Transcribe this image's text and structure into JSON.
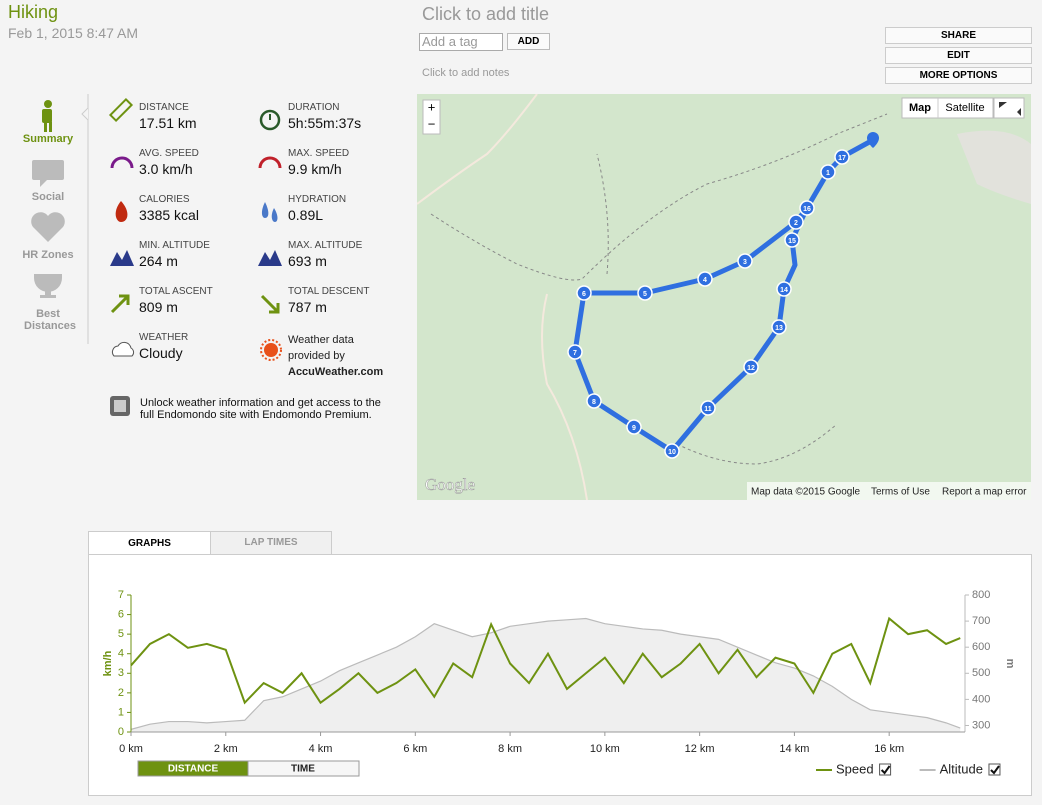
{
  "header": {
    "title": "Hiking",
    "date": "Feb 1, 2015 8:47 AM",
    "title_placeholder": "Click to add title",
    "tag_placeholder": "Add a tag",
    "add_button": "ADD",
    "notes_placeholder": "Click to add notes"
  },
  "actions": [
    "SHARE",
    "EDIT",
    "MORE OPTIONS"
  ],
  "nav": [
    "Summary",
    "Social",
    "HR Zones",
    "Best Distances"
  ],
  "stats": [
    {
      "label": "DISTANCE",
      "value": "17.51 km"
    },
    {
      "label": "DURATION",
      "value": "5h:55m:37s"
    },
    {
      "label": "AVG. SPEED",
      "value": "3.0 km/h"
    },
    {
      "label": "MAX. SPEED",
      "value": "9.9 km/h"
    },
    {
      "label": "CALORIES",
      "value": "3385 kcal"
    },
    {
      "label": "HYDRATION",
      "value": "0.89L"
    },
    {
      "label": "MIN. ALTITUDE",
      "value": "264 m"
    },
    {
      "label": "MAX. ALTITUDE",
      "value": "693 m"
    },
    {
      "label": "TOTAL ASCENT",
      "value": "809 m"
    },
    {
      "label": "TOTAL DESCENT",
      "value": "787 m"
    },
    {
      "label": "WEATHER",
      "value": "Cloudy"
    }
  ],
  "weather_note": [
    "Weather data",
    "provided by",
    "AccuWeather.com"
  ],
  "promo": "Unlock weather information and get access to the full Endomondo site with Endomondo Premium.",
  "map": {
    "controls": [
      "Map",
      "Satellite"
    ],
    "zoom": [
      "+",
      "−"
    ],
    "logo": "Google",
    "footer": [
      "Map data ©2015 Google",
      "Terms of Use",
      "Report a map error"
    ],
    "markers": [
      "1",
      "2",
      "3",
      "4",
      "5",
      "6",
      "7",
      "8",
      "9",
      "10",
      "11",
      "12",
      "13",
      "14",
      "15",
      "16",
      "17"
    ]
  },
  "tabs": [
    "GRAPHS",
    "LAP TIMES"
  ],
  "chart_data": {
    "type": "line",
    "y_label": "km/h",
    "y2_label": "m",
    "x": [
      0,
      0.4,
      0.8,
      1.2,
      1.6,
      2.0,
      2.4,
      2.8,
      3.2,
      3.6,
      4.0,
      4.4,
      4.8,
      5.2,
      5.6,
      6.0,
      6.4,
      6.8,
      7.2,
      7.6,
      8.0,
      8.4,
      8.8,
      9.2,
      9.6,
      10.0,
      10.4,
      10.8,
      11.2,
      11.6,
      12.0,
      12.4,
      12.8,
      13.2,
      13.6,
      14.0,
      14.4,
      14.8,
      15.2,
      15.6,
      16.0,
      16.4,
      16.8,
      17.2,
      17.5
    ],
    "series": [
      {
        "name": "Speed",
        "color": "#6e9211",
        "values": [
          3.4,
          4.5,
          5.0,
          4.3,
          4.5,
          4.2,
          1.5,
          2.5,
          2.0,
          3.0,
          1.5,
          2.2,
          3.0,
          2.0,
          2.5,
          3.2,
          1.8,
          3.5,
          2.8,
          5.5,
          3.5,
          2.5,
          4.0,
          2.2,
          3.0,
          3.8,
          2.5,
          4.0,
          2.8,
          3.5,
          4.5,
          3.0,
          4.2,
          2.8,
          3.8,
          3.5,
          2.0,
          4.0,
          4.5,
          2.5,
          5.8,
          5.0,
          5.2,
          4.5,
          4.8
        ]
      },
      {
        "name": "Altitude",
        "color": "#bbbbbb",
        "axis": "y2",
        "values": [
          285,
          305,
          315,
          315,
          310,
          315,
          320,
          395,
          410,
          440,
          470,
          510,
          540,
          570,
          600,
          640,
          690,
          665,
          640,
          655,
          680,
          690,
          700,
          705,
          710,
          690,
          680,
          670,
          665,
          650,
          640,
          630,
          600,
          570,
          540,
          520,
          490,
          450,
          400,
          360,
          350,
          340,
          330,
          310,
          290
        ]
      }
    ],
    "xlim": [
      0,
      17.6
    ],
    "xticks": [
      {
        "value": 0,
        "label": "0 km"
      },
      {
        "value": 2,
        "label": "2 km"
      },
      {
        "value": 4,
        "label": "4 km"
      },
      {
        "value": 6,
        "label": "6 km"
      },
      {
        "value": 8,
        "label": "8 km"
      },
      {
        "value": 10,
        "label": "10 km"
      },
      {
        "value": 12,
        "label": "12 km"
      },
      {
        "value": 14,
        "label": "14 km"
      },
      {
        "value": 16,
        "label": "16 km"
      }
    ],
    "ylim": [
      0,
      7
    ],
    "yticks": [
      0,
      1,
      2,
      3,
      4,
      5,
      6,
      7
    ],
    "y2lim": [
      275,
      800
    ],
    "y2ticks": [
      300,
      400,
      500,
      600,
      700,
      800
    ],
    "grid": false
  },
  "toggle": [
    "DISTANCE",
    "TIME"
  ]
}
